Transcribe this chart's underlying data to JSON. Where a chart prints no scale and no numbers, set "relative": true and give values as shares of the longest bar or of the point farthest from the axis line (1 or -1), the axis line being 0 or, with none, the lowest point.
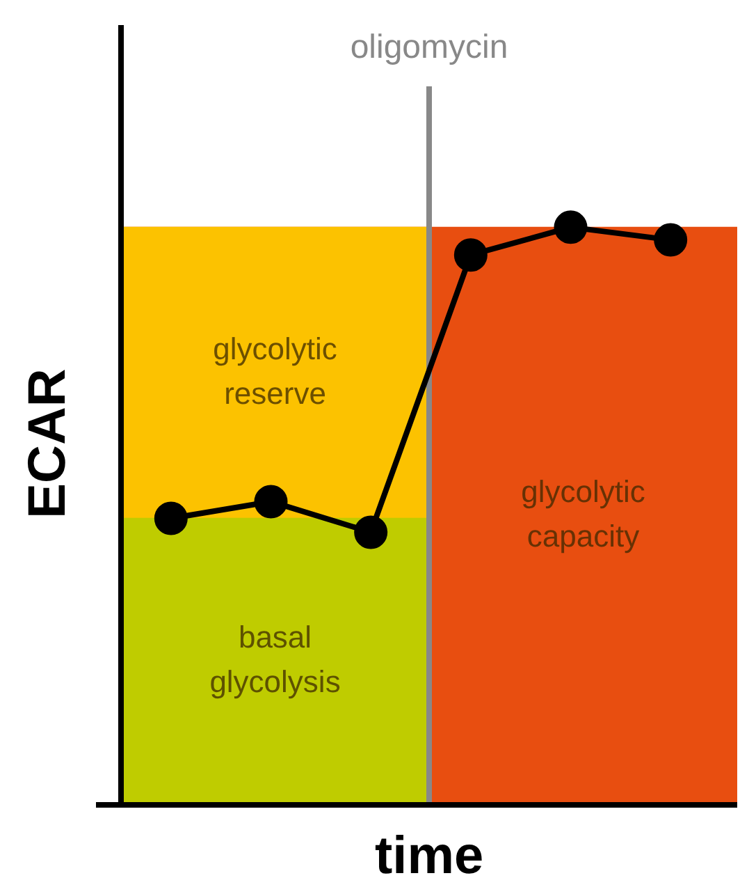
{
  "chart_data": [
    {
      "type": "bar",
      "stacked": true,
      "relative": true,
      "xlabel": "time",
      "ylabel": "ECAR",
      "ref_lines": [
        {
          "axis": "x",
          "label": "oligomycin",
          "color": "#888888"
        }
      ],
      "categories": [
        null,
        null
      ],
      "series": [
        {
          "name": "basal glycolysis",
          "color": "#bfcc00",
          "values": [
            0.496,
            0
          ]
        },
        {
          "name": "glycolytic reserve",
          "color": "#fcc200",
          "values": [
            0.504,
            0
          ]
        },
        {
          "name": "glycolytic capacity",
          "color": "#e84e10",
          "values": [
            0,
            1
          ]
        }
      ]
    },
    {
      "type": "line",
      "relative": true,
      "marker": "circle",
      "line_style": "solid",
      "categories": [
        null,
        null,
        null,
        null,
        null,
        null
      ],
      "series": [
        {
          "color": "#000000",
          "values": [
            0.496,
            0.525,
            0.472,
            0.952,
            1,
            0.978
          ]
        }
      ]
    }
  ]
}
